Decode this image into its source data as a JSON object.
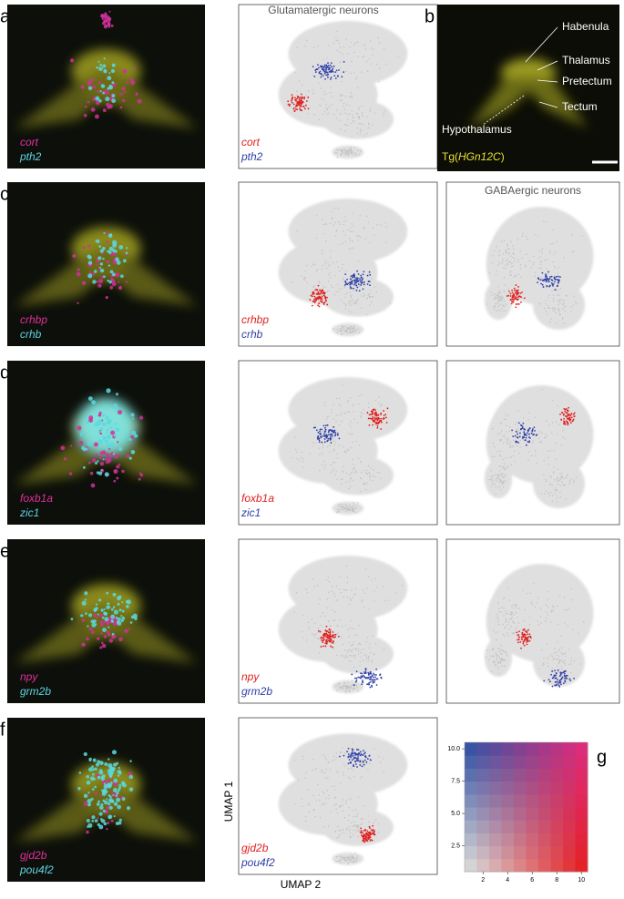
{
  "rows": [
    {
      "letter": "a",
      "genes": [
        "cort",
        "pth2"
      ]
    },
    {
      "letter": "c",
      "genes": [
        "crhbp",
        "crhb"
      ]
    },
    {
      "letter": "d",
      "genes": [
        "foxb1a",
        "zic1"
      ]
    },
    {
      "letter": "e",
      "genes": [
        "npy",
        "grm2b"
      ]
    },
    {
      "letter": "f",
      "genes": [
        "gjd2b",
        "pou4f2"
      ]
    }
  ],
  "glutamatergic_title": "Glutamatergic neurons",
  "gabaergic_title": "GABAergic neurons",
  "panel_b": {
    "letter": "b",
    "labels": [
      "Habenula",
      "Thalamus",
      "Pretectum",
      "Tectum",
      "Hypothalamus"
    ],
    "transgene_prefix": "Tg(",
    "transgene": "HGn12C",
    "transgene_suffix": ")"
  },
  "umap_axes": [
    "UMAP 1",
    "UMAP 2"
  ],
  "panel_g": {
    "letter": "g",
    "xlim": [
      0.5,
      10.5
    ],
    "ylim": [
      0.5,
      10.5
    ],
    "xticks": [
      2,
      4,
      6,
      8,
      10
    ],
    "yticks": [
      2.5,
      {
        "value": 5,
        "label": "5.0"
      },
      7.5,
      {
        "value": 10,
        "label": "10.0"
      }
    ]
  }
}
